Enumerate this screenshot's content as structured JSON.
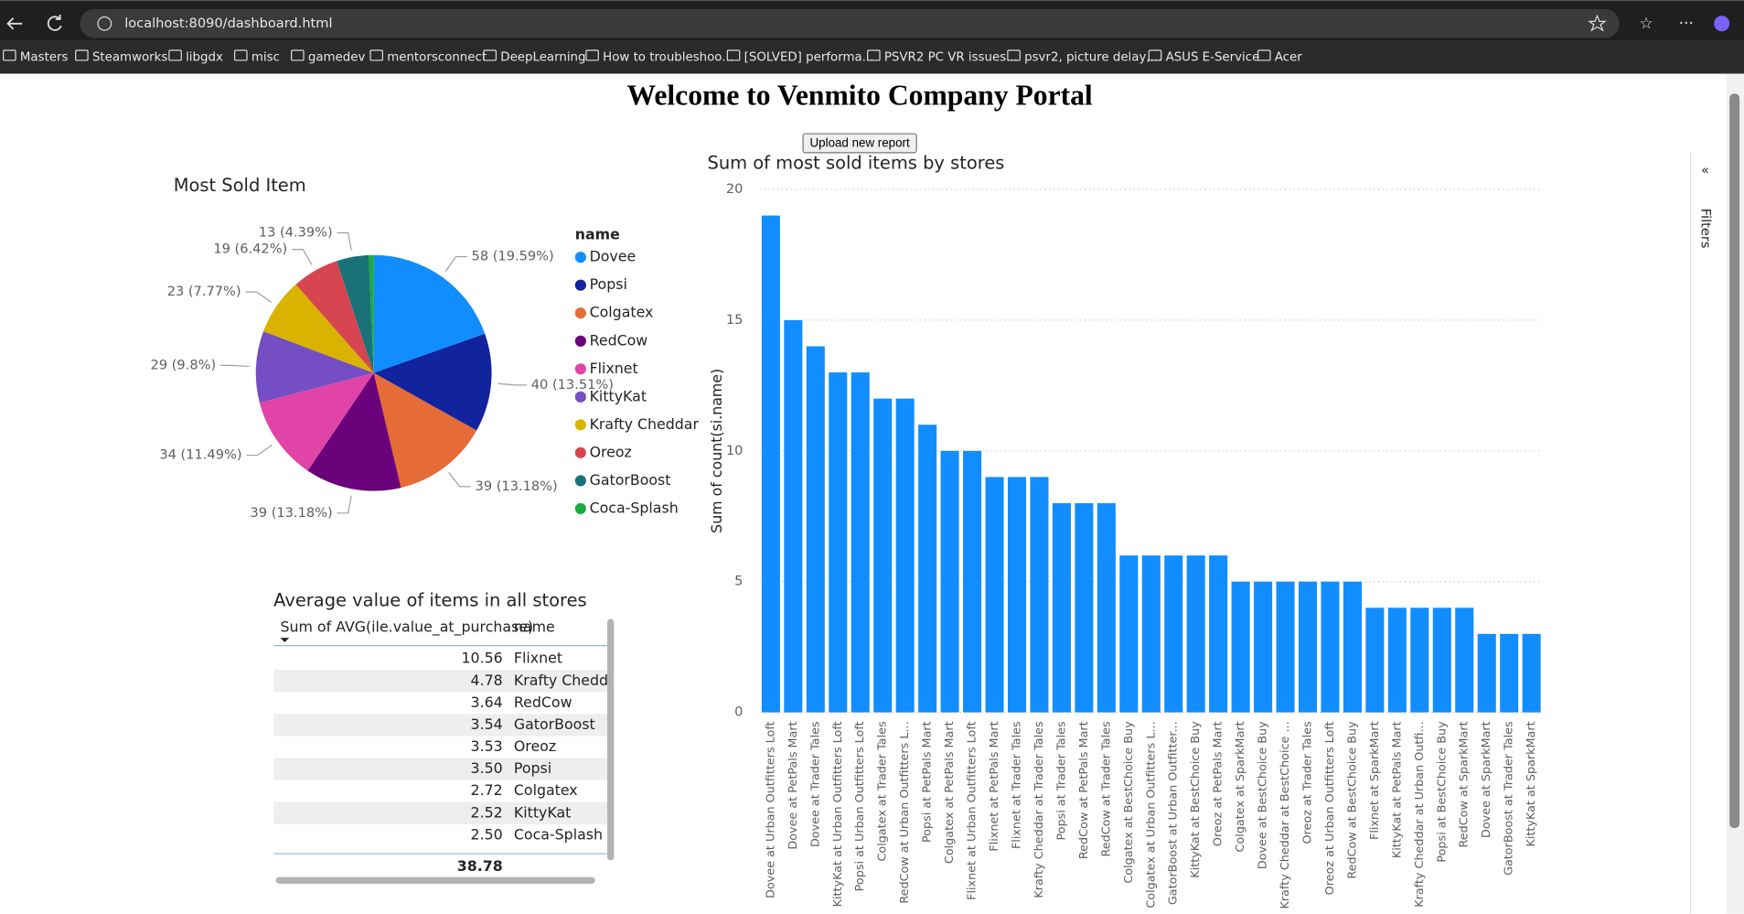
{
  "browser": {
    "url": "localhost:8090/dashboard.html",
    "bookmarks": [
      "Masters",
      "Steamworks",
      "libgdx",
      "misc",
      "gamedev",
      "mentorsconnect",
      "DeepLearning",
      "How to troubleshoo...",
      "[SOLVED] performa...",
      "PSVR2 PC VR issues...",
      "psvr2, picture delay,...",
      "ASUS E-Service",
      "Acer"
    ]
  },
  "page": {
    "title": "Welcome to Venmito Company Portal",
    "button": "Upload new report",
    "filters": "Filters"
  },
  "table": {
    "title": "Average value of items in all stores",
    "headers": [
      "Sum of AVG(ile.value_at_purchase)",
      "name"
    ],
    "rows": [
      [
        "10.56",
        "Flixnet"
      ],
      [
        "4.78",
        "Krafty Cheddar"
      ],
      [
        "3.64",
        "RedCow"
      ],
      [
        "3.54",
        "GatorBoost"
      ],
      [
        "3.53",
        "Oreoz"
      ],
      [
        "3.50",
        "Popsi"
      ],
      [
        "2.72",
        "Colgatex"
      ],
      [
        "2.52",
        "KittyKat"
      ],
      [
        "2.50",
        "Coca-Splash"
      ]
    ],
    "total": "38.78"
  },
  "chart_data": [
    {
      "type": "pie",
      "title": "Most Sold Item",
      "legend_title": "name",
      "categories": [
        "Dovee",
        "Popsi",
        "Colgatex",
        "RedCow",
        "Flixnet",
        "KittyKat",
        "Krafty Cheddar",
        "Oreoz",
        "GatorBoost",
        "Coca-Splash"
      ],
      "values": [
        58,
        40,
        39,
        39,
        34,
        29,
        23,
        19,
        13,
        2
      ],
      "value_labels": [
        "58 (19.59%)",
        "40 (13.51%)",
        "39 (13.18%)",
        "39 (13.18%)",
        "34 (11.49%)",
        "29 (9.8%)",
        "23 (7.77%)",
        "19 (6.42%)",
        "13 (4.39%)",
        null
      ],
      "colors": [
        "#118dff",
        "#12239e",
        "#e66c37",
        "#6b007b",
        "#e044a7",
        "#744ec2",
        "#d9b300",
        "#d64550",
        "#197278",
        "#1aab40"
      ]
    },
    {
      "type": "bar",
      "title": "Sum of most sold items by stores",
      "y_label": "Sum of count(si.name)",
      "color": "#118dff",
      "categories": [
        "Dovee at Urban Outfitters Loft",
        "Dovee at PetPals Mart",
        "Dovee at Trader Tales",
        "KittyKat at Urban Outfitters Loft",
        "Popsi at Urban Outfitters Loft",
        "Colgatex at Trader Tales",
        "RedCow at Urban Outfitters L...",
        "Popsi at PetPals Mart",
        "Colgatex at PetPals Mart",
        "Flixnet at Urban Outfitters Loft",
        "Flixnet at PetPals Mart",
        "Flixnet at Trader Tales",
        "Krafty Cheddar at Trader Tales",
        "Popsi at Trader Tales",
        "RedCow at PetPals Mart",
        "RedCow at Trader Tales",
        "Colgatex at BestChoice Buy",
        "Colgatex at Urban Outfitters L...",
        "GatorBoost at Urban Outfitter...",
        "KittyKat at BestChoice Buy",
        "Oreoz at PetPals Mart",
        "Colgatex at SparkMart",
        "Dovee at BestChoice Buy",
        "Krafty Cheddar at BestChoice ...",
        "Oreoz at Trader Tales",
        "Oreoz at Urban Outfitters Loft",
        "RedCow at BestChoice Buy",
        "Flixnet at SparkMart",
        "KittyKat at PetPals Mart",
        "Krafty Cheddar at Urban Outfi...",
        "Popsi at BestChoice Buy",
        "RedCow at SparkMart",
        "Dovee at SparkMart",
        "GatorBoost at Trader Tales",
        "KittyKat at SparkMart"
      ],
      "values": [
        19,
        15,
        14,
        13,
        13,
        12,
        12,
        11,
        10,
        10,
        9,
        9,
        9,
        8,
        8,
        8,
        6,
        6,
        6,
        6,
        6,
        5,
        5,
        5,
        5,
        5,
        5,
        4,
        4,
        4,
        4,
        4,
        3,
        3,
        3
      ],
      "ylim": [
        0,
        20
      ],
      "yticks": [
        0,
        5,
        10,
        15,
        20
      ],
      "grid": true
    }
  ]
}
